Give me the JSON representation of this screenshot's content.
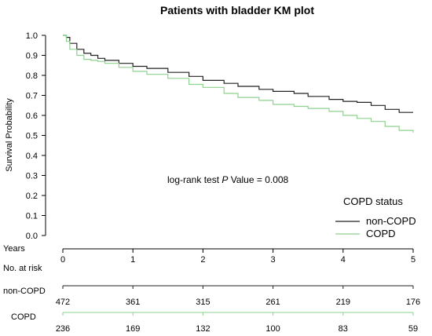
{
  "chart_data": {
    "type": "line",
    "title": "Patients with bladder KM plot",
    "xlabel": "Years",
    "ylabel": "Survival Probability",
    "xlim": [
      0,
      5
    ],
    "ylim": [
      0,
      1
    ],
    "x_ticks": [
      0,
      1,
      2,
      3,
      4,
      5
    ],
    "y_ticks": [
      "0.0",
      "0.1",
      "0.2",
      "0.3",
      "0.4",
      "0.5",
      "0.6",
      "0.7",
      "0.8",
      "0.9",
      "1.0"
    ],
    "annotation": {
      "prefix": "log-rank test ",
      "italic": "P",
      "suffix": " Value = 0.008"
    },
    "legend": {
      "title": "COPD status",
      "position": "bottom-right"
    },
    "series": [
      {
        "name": "non-COPD",
        "color": "#222222",
        "x": [
          0,
          0.05,
          0.1,
          0.2,
          0.3,
          0.4,
          0.5,
          0.6,
          0.8,
          1.0,
          1.2,
          1.5,
          1.8,
          2.0,
          2.3,
          2.5,
          2.8,
          3.0,
          3.3,
          3.5,
          3.8,
          4.0,
          4.2,
          4.4,
          4.6,
          4.8,
          5.0
        ],
        "y": [
          1.0,
          0.99,
          0.96,
          0.93,
          0.91,
          0.9,
          0.885,
          0.875,
          0.86,
          0.845,
          0.835,
          0.815,
          0.795,
          0.775,
          0.76,
          0.745,
          0.73,
          0.72,
          0.71,
          0.695,
          0.68,
          0.67,
          0.665,
          0.65,
          0.63,
          0.615,
          0.615
        ]
      },
      {
        "name": "COPD",
        "color": "#8fd18f",
        "x": [
          0,
          0.05,
          0.1,
          0.2,
          0.3,
          0.4,
          0.5,
          0.6,
          0.8,
          1.0,
          1.2,
          1.5,
          1.8,
          2.0,
          2.3,
          2.5,
          2.8,
          3.0,
          3.3,
          3.5,
          3.8,
          4.0,
          4.2,
          4.4,
          4.6,
          4.8,
          5.0
        ],
        "y": [
          1.0,
          0.97,
          0.93,
          0.9,
          0.88,
          0.875,
          0.87,
          0.86,
          0.84,
          0.82,
          0.805,
          0.785,
          0.755,
          0.74,
          0.71,
          0.69,
          0.675,
          0.655,
          0.645,
          0.635,
          0.62,
          0.6,
          0.585,
          0.57,
          0.545,
          0.525,
          0.515
        ]
      }
    ],
    "risk_table": {
      "title": "No. at risk",
      "times": [
        0,
        1,
        2,
        3,
        4,
        5
      ],
      "rows": [
        {
          "name": "non-COPD",
          "color": "#222222",
          "counts": [
            "472",
            "361",
            "315",
            "261",
            "219",
            "176"
          ]
        },
        {
          "name": "COPD",
          "color": "#8fd18f",
          "counts": [
            "236",
            "169",
            "132",
            "100",
            "83",
            "59"
          ]
        }
      ]
    }
  }
}
